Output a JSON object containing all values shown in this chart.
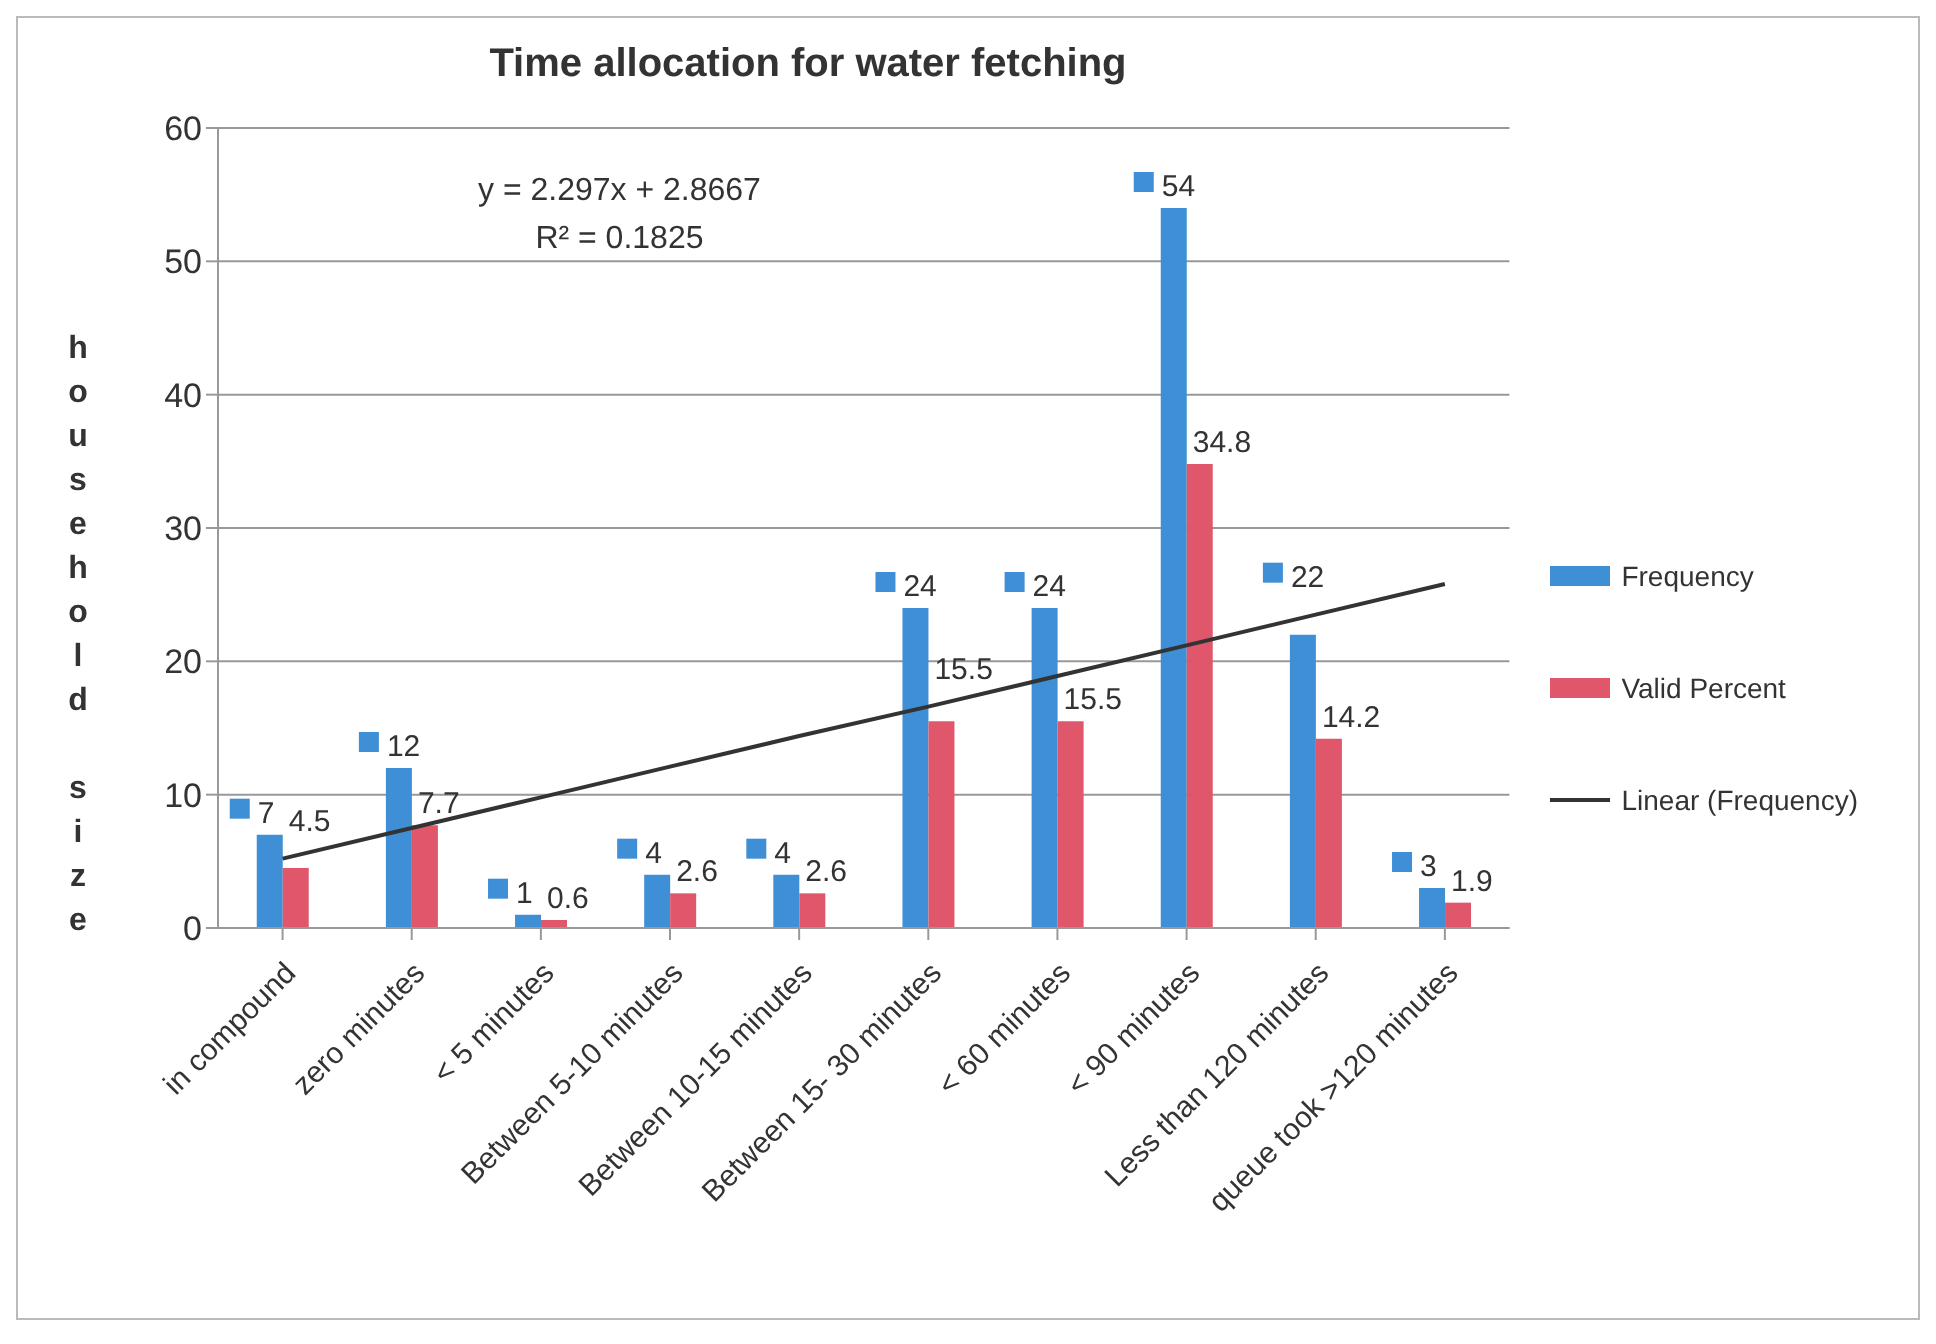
{
  "chart_data": {
    "type": "bar",
    "title": "Time allocation for water fetching",
    "ylabel": "household size",
    "categories": [
      "in compound",
      "zero minutes",
      "< 5 minutes",
      "Between  5-10 minutes",
      "Between 10-15 minutes",
      "Between 15- 30 minutes",
      "< 60 minutes",
      "< 90 minutes",
      "Less than 120 minutes",
      "queue took >120 minutes"
    ],
    "series": [
      {
        "name": "Frequency",
        "color": "#3f8fd6",
        "values": [
          7,
          12,
          1,
          4,
          4,
          24,
          24,
          54,
          22,
          3
        ],
        "value_labels": [
          "7",
          "12",
          "1",
          "4",
          "4",
          "24",
          "24",
          "54",
          "22",
          "3"
        ]
      },
      {
        "name": "Valid Percent",
        "color": "#e0566a",
        "values": [
          4.5,
          7.7,
          0.6,
          2.6,
          2.6,
          15.5,
          15.5,
          34.8,
          14.2,
          1.9
        ],
        "value_labels": [
          "4.5",
          "7.7",
          "0.6",
          "2.6",
          "2.6",
          "15.5",
          "15.5",
          "34.8",
          "14.2",
          "1.9"
        ]
      },
      {
        "name": "Linear (Frequency)",
        "type": "line",
        "color": "#333333",
        "x": [
          "in compound",
          "zero minutes",
          "< 5 minutes",
          "Between  5-10 minutes",
          "Between 10-15 minutes",
          "Between 15- 30 minutes",
          "< 60 minutes",
          "< 90 minutes",
          "Less than 120 minutes",
          "queue took >120 minutes"
        ],
        "values": [
          5.2,
          7.5,
          9.8,
          12.1,
          14.4,
          16.6,
          18.9,
          21.2,
          23.5,
          25.8
        ]
      }
    ],
    "annotations": [
      "y = 2.297x + 2.8667",
      "R² = 0.1825"
    ],
    "ylim": [
      0,
      60
    ],
    "yticks": [
      0,
      10,
      20,
      30,
      40,
      50,
      60
    ],
    "grid": "y",
    "legend": "right",
    "marker": "none"
  }
}
